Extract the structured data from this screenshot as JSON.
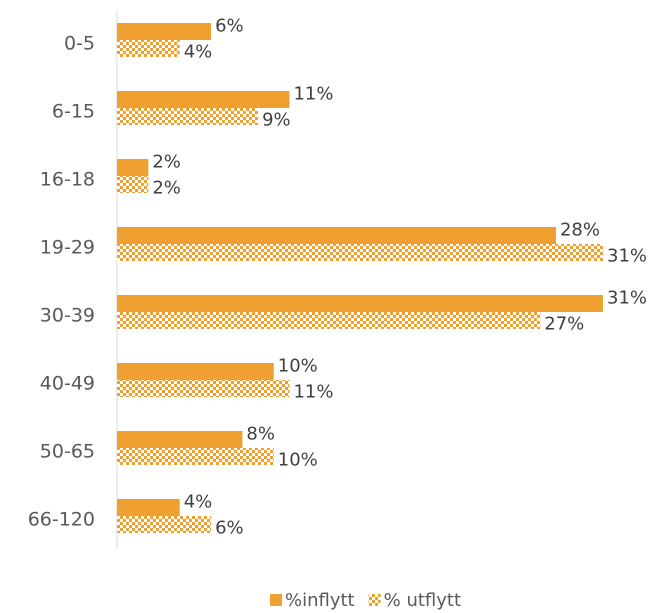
{
  "chart_data": {
    "type": "hbar",
    "categories": [
      "0-5",
      "6-15",
      "16-18",
      "19-29",
      "30-39",
      "40-49",
      "50-65",
      "66-120"
    ],
    "series": [
      {
        "name": "%inflytt",
        "color": "#f0a030",
        "pattern": "solid",
        "values": [
          6,
          11,
          2,
          28,
          31,
          10,
          8,
          4
        ],
        "value_labels": [
          "6%",
          "11%",
          "2%",
          "28%",
          "31%",
          "10%",
          "8%",
          "4%"
        ]
      },
      {
        "name": "% utflytt",
        "color": "#f0a030",
        "pattern": "checker",
        "values": [
          4,
          9,
          2,
          31,
          27,
          11,
          10,
          6
        ],
        "value_labels": [
          "4%",
          "9%",
          "2%",
          "31%",
          "27%",
          "11%",
          "10%",
          "6%"
        ]
      }
    ],
    "legend": "bottom"
  }
}
